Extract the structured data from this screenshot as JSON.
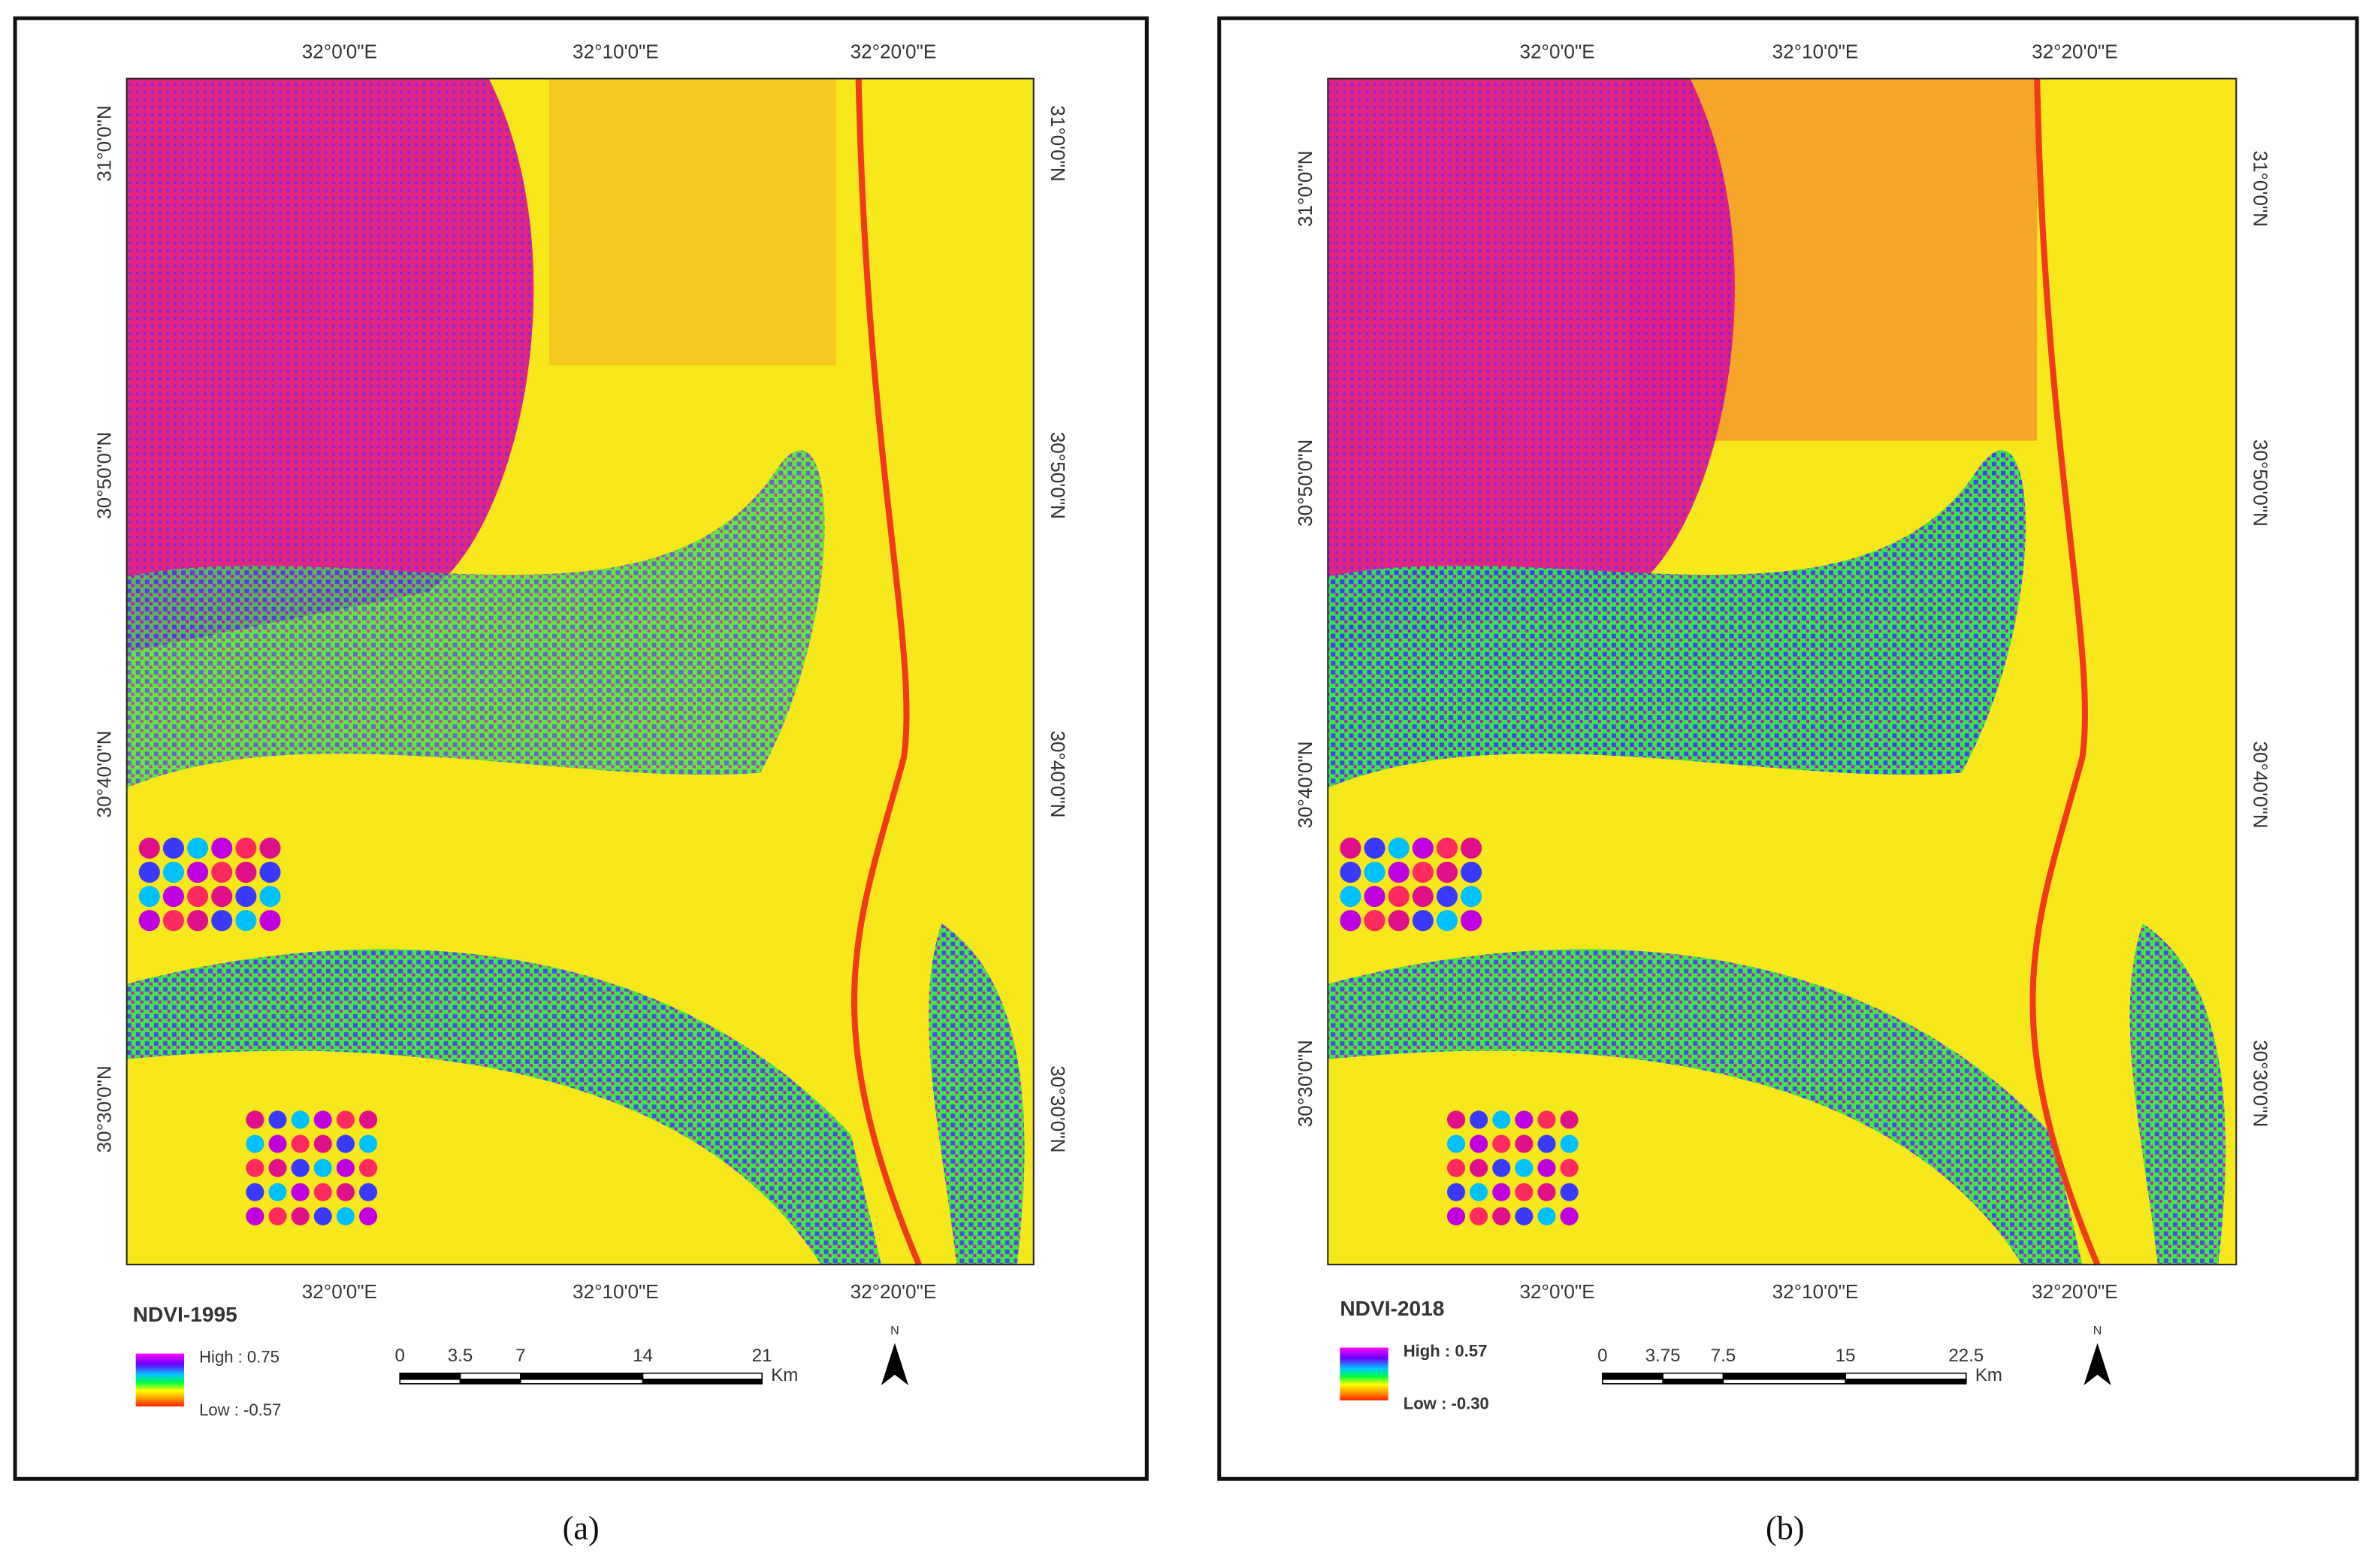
{
  "panels": [
    {
      "title": "NDVI-1995",
      "caption": "(a)",
      "lon_labels": [
        "32°0'0\"E",
        "32°10'0\"E",
        "32°20'0\"E"
      ],
      "lat_labels": [
        "31°0'0\"N",
        "30°50'0\"N",
        "30°40'0\"N",
        "30°30'0\"N"
      ],
      "legend": {
        "high": "High : 0.75",
        "low": "Low : -0.57"
      },
      "scale_bar": {
        "ticks": [
          "0",
          "3.5",
          "7",
          "14",
          "21"
        ],
        "unit": "Km"
      },
      "north": "N"
    },
    {
      "title": "NDVI-2018",
      "caption": "(b)",
      "lon_labels": [
        "32°0'0\"E",
        "32°10'0\"E",
        "32°20'0\"E"
      ],
      "lat_labels": [
        "31°0'0\"N",
        "30°50'0\"N",
        "30°40'0\"N",
        "30°30'0\"N"
      ],
      "legend": {
        "high": "High : 0.57",
        "low": "Low : -0.30"
      },
      "scale_bar": {
        "ticks": [
          "0",
          "3.75",
          "7.5",
          "15",
          "22.5"
        ],
        "unit": "Km"
      },
      "north": "N"
    }
  ]
}
